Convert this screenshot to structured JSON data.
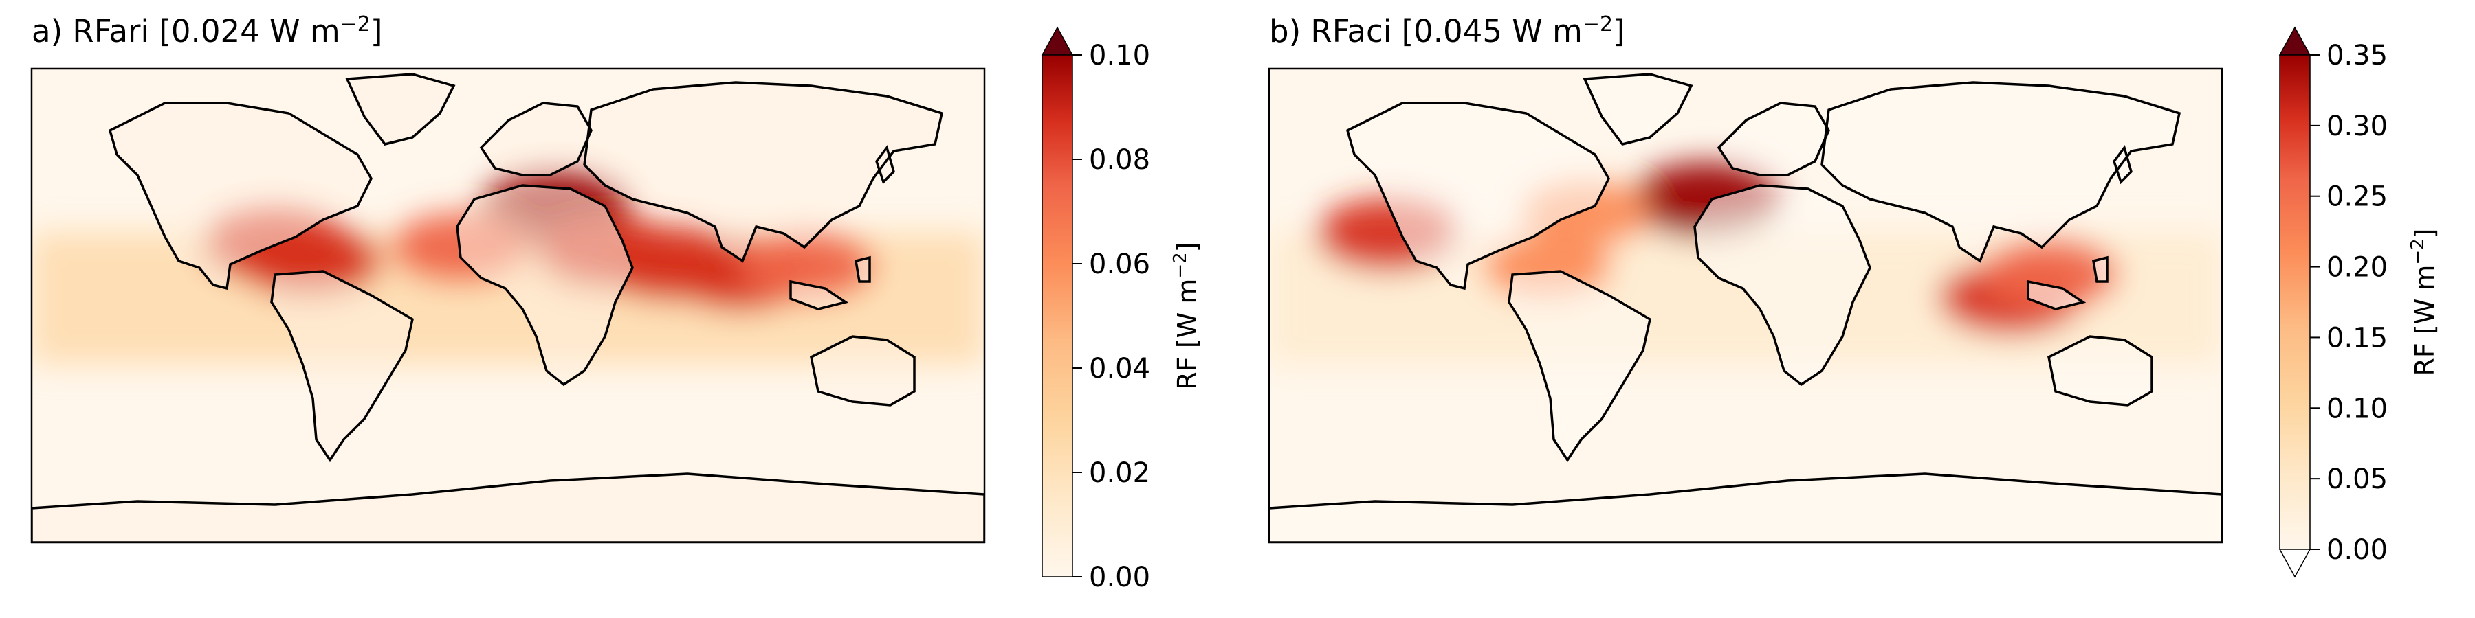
{
  "panels": [
    {
      "id": "a",
      "title_prefix": "a) RFari [0.024 W m",
      "title_exp": "−2",
      "title_suffix": "]",
      "colorbar": {
        "label": "RF [W m",
        "label_exp": "−2",
        "label_suffix": "]",
        "min": 0.0,
        "max": 0.1,
        "extend": "max",
        "ticks": [
          "0.00",
          "0.02",
          "0.04",
          "0.06",
          "0.08",
          "0.10"
        ]
      },
      "hotspots": [
        {
          "name": "mediterranean",
          "lon": 18,
          "lat": 37,
          "value": 0.095
        },
        {
          "name": "red-sea",
          "lon": 38,
          "lat": 20,
          "value": 0.09
        },
        {
          "name": "arabian-sea",
          "lon": 62,
          "lat": 16,
          "value": 0.09
        },
        {
          "name": "bay-of-bengal",
          "lon": 88,
          "lat": 12,
          "value": 0.085
        },
        {
          "name": "gulf-of-mexico",
          "lon": -88,
          "lat": 23,
          "value": 0.09
        },
        {
          "name": "caribbean",
          "lon": -75,
          "lat": 17,
          "value": 0.085
        },
        {
          "name": "west-africa-coast",
          "lon": -18,
          "lat": 22,
          "value": 0.075
        },
        {
          "name": "south-china-sea",
          "lon": 113,
          "lat": 15,
          "value": 0.07
        }
      ]
    },
    {
      "id": "b",
      "title_prefix": "b) RFaci [0.045 W m",
      "title_exp": "−2",
      "title_suffix": "]",
      "colorbar": {
        "label": "RF [W m",
        "label_exp": "−2",
        "label_suffix": "]",
        "min": 0.0,
        "max": 0.35,
        "extend": "both",
        "ticks": [
          "0.00",
          "0.05",
          "0.10",
          "0.15",
          "0.20",
          "0.25",
          "0.30",
          "0.35"
        ]
      },
      "hotspots": [
        {
          "name": "northeast-atlantic",
          "lon": -15,
          "lat": 40,
          "value": 0.34
        },
        {
          "name": "northeast-pacific",
          "lon": -135,
          "lat": 27,
          "value": 0.3
        },
        {
          "name": "strait-of-malacca",
          "lon": 100,
          "lat": 3,
          "value": 0.3
        },
        {
          "name": "south-china-sea",
          "lon": 115,
          "lat": 12,
          "value": 0.25
        },
        {
          "name": "west-atlantic",
          "lon": -60,
          "lat": 35,
          "value": 0.2
        },
        {
          "name": "caribbean",
          "lon": -75,
          "lat": 15,
          "value": 0.2
        }
      ]
    }
  ],
  "colors": {
    "colormap": "OrRd",
    "low": "#fff7ec",
    "mid": "#fc8d59",
    "high": "#7f0000",
    "coastline": "#000000"
  }
}
